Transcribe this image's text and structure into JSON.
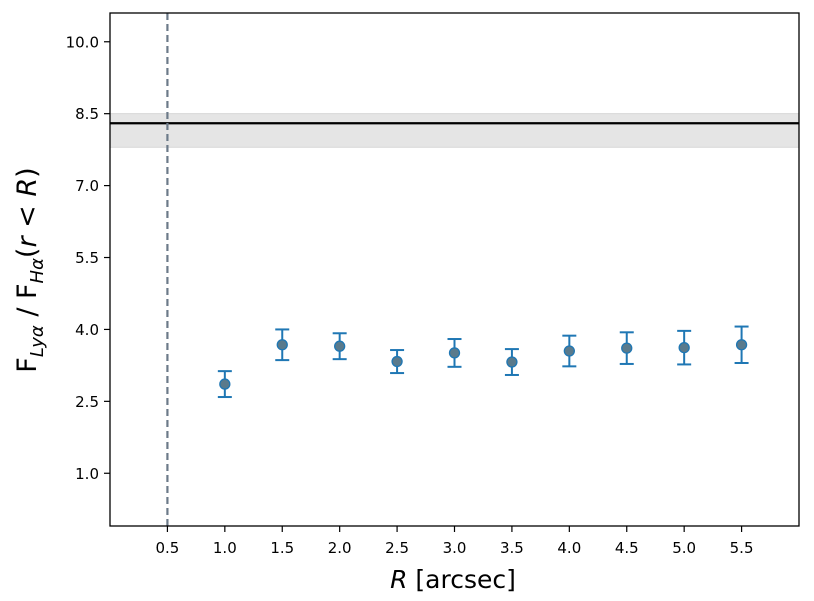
{
  "chart_data": {
    "type": "scatter",
    "xlabel": "R [arcsec]",
    "ylabel": "F_Lyα / F_Hα(r < R)",
    "xlim": [
      0.0,
      6.0
    ],
    "ylim": [
      -0.1,
      10.6
    ],
    "x_ticks": [
      "0.5",
      "1.0",
      "1.5",
      "2.0",
      "2.5",
      "3.0",
      "3.5",
      "4.0",
      "4.5",
      "5.0",
      "5.5"
    ],
    "y_ticks": [
      "1.0",
      "2.5",
      "4.0",
      "5.5",
      "7.0",
      "8.5",
      "10.0"
    ],
    "grid": false,
    "legend": "none",
    "series": [
      {
        "x": [
          1.0,
          1.5,
          2.0,
          2.5,
          3.0,
          3.5,
          4.0,
          4.5,
          5.0,
          5.5
        ],
        "y": [
          2.86,
          3.68,
          3.65,
          3.33,
          3.51,
          3.32,
          3.55,
          3.61,
          3.62,
          3.68
        ],
        "err_low": [
          0.27,
          0.32,
          0.27,
          0.24,
          0.29,
          0.27,
          0.32,
          0.33,
          0.35,
          0.38
        ],
        "err_high": [
          0.27,
          0.32,
          0.27,
          0.24,
          0.29,
          0.27,
          0.32,
          0.33,
          0.35,
          0.38
        ],
        "marker_color": "#5a7a8c",
        "error_color": "#1f77b4"
      }
    ],
    "hline": {
      "y": 8.3,
      "color": "#000000"
    },
    "hband": {
      "y_low": 7.8,
      "y_high": 8.5,
      "color": "#e5e5e5"
    },
    "vline": {
      "x": 0.5,
      "color": "#6c7a89",
      "style": "dashed"
    }
  }
}
